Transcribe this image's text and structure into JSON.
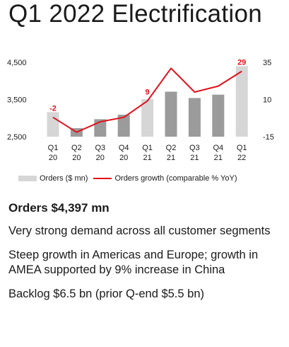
{
  "page": {
    "title": "Q1 2022 Electrification"
  },
  "chart_data": {
    "type": "bar",
    "categories": [
      [
        "Q1",
        "20"
      ],
      [
        "Q2",
        "20"
      ],
      [
        "Q3",
        "20"
      ],
      [
        "Q4",
        "20"
      ],
      [
        "Q1",
        "21"
      ],
      [
        "Q2",
        "21"
      ],
      [
        "Q3",
        "21"
      ],
      [
        "Q4",
        "21"
      ],
      [
        "Q1",
        "22"
      ]
    ],
    "series": [
      {
        "name": "Orders ($ mn)",
        "type": "bar",
        "axis": "left",
        "values": [
          3160,
          2730,
          2970,
          3090,
          3510,
          3710,
          3540,
          3630,
          4397
        ],
        "color": "#9b9b9b",
        "highlight_color": "#d6d6d6",
        "highlight_indices": [
          0,
          4,
          8
        ]
      },
      {
        "name": "Orders growth (comparable % YoY)",
        "type": "line",
        "axis": "right",
        "values": [
          -2,
          -12,
          -5,
          -2,
          9,
          31,
          15,
          19,
          29
        ],
        "color": "#e3101a"
      }
    ],
    "data_labels": [
      {
        "series": 1,
        "index": 0,
        "text": "-2"
      },
      {
        "series": 1,
        "index": 4,
        "text": "9"
      },
      {
        "series": 1,
        "index": 8,
        "text": "29"
      }
    ],
    "y_left": {
      "lim": [
        2500,
        4500
      ],
      "ticks": [
        2500,
        3500,
        4500
      ],
      "tick_labels": [
        "2,500",
        "3,500",
        "4,500"
      ]
    },
    "y_right": {
      "lim": [
        -15,
        35
      ],
      "ticks": [
        -15,
        10,
        35
      ],
      "tick_labels": [
        "-15",
        "10",
        "35"
      ]
    },
    "grid": false,
    "legend_position": "bottom"
  },
  "legend": {
    "bars_label": "Orders ($ mn)",
    "line_label": "Orders growth (comparable % YoY)"
  },
  "headline": "Orders $4,397 mn",
  "bullets": [
    "Very strong demand across all customer segments",
    "Steep growth in Americas and Europe; growth in AMEA supported by 9% increase in China",
    "Backlog $6.5 bn (prior Q-end $5.5 bn)"
  ]
}
